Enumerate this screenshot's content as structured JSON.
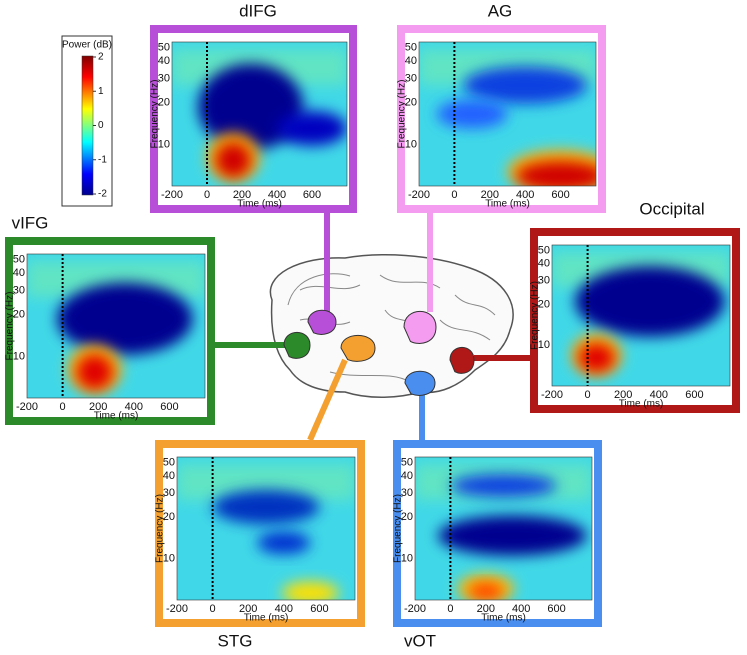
{
  "colorbar": {
    "label": "Power (dB)",
    "ticks": [
      2,
      1,
      0,
      -1,
      -2
    ]
  },
  "axes": {
    "ylabel": "Frequency (Hz)",
    "xlabel": "Time (ms)",
    "yticks": [
      50,
      40,
      30,
      20,
      10
    ],
    "xticks": [
      -200,
      0,
      200,
      400,
      600
    ]
  },
  "panels": [
    {
      "title": "dIFG",
      "color": "#b84fd8"
    },
    {
      "title": "AG",
      "color": "#f49cf0"
    },
    {
      "title": "vIFG",
      "color": "#2d8a2a"
    },
    {
      "title": "Occipital",
      "color": "#b01818"
    },
    {
      "title": "STG",
      "color": "#f4a030"
    },
    {
      "title": "vOT",
      "color": "#4a8ef0"
    }
  ]
}
